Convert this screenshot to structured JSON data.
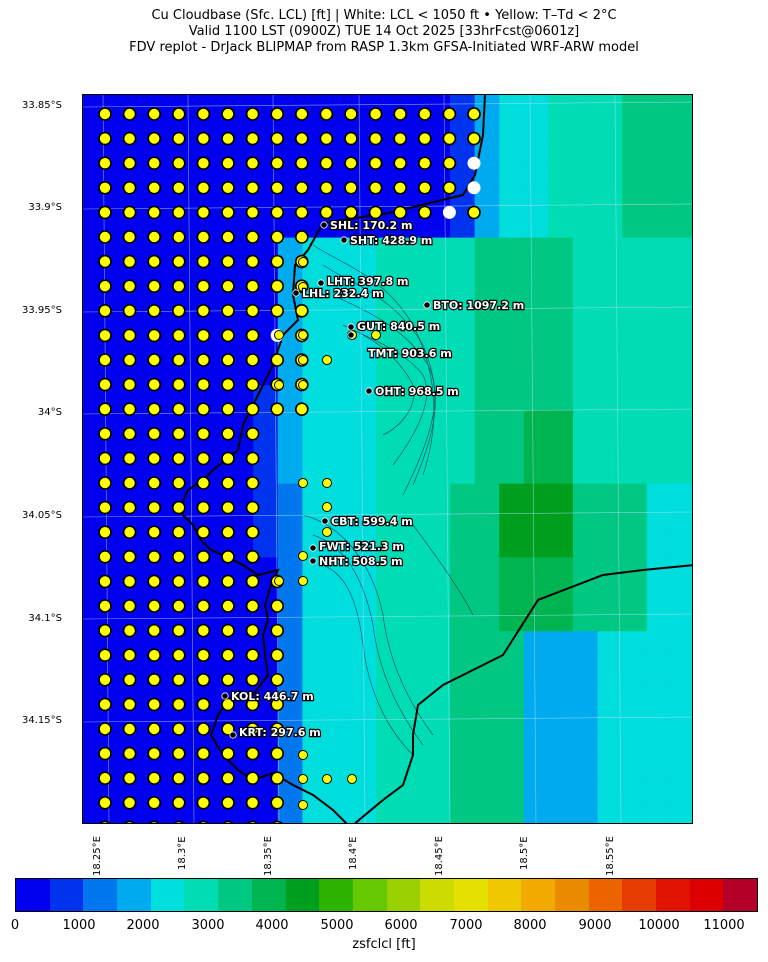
{
  "title": {
    "line1": "Cu Cloudbase (Sfc. LCL) [ft]  |  White: LCL < 1050 ft • Yellow: T–Td < 2°C",
    "line2": "Valid 1100 LST (0900Z) TUE 14 Oct 2025 [33hrFcst@0601z]",
    "line3": "FDV replot - DrJack BLIPMAP from RASP 1.3km GFSA-Initiated WRF-ARW model"
  },
  "axes": {
    "lat_ticks": [
      "33.85°S",
      "33.9°S",
      "33.95°S",
      "34°S",
      "34.05°S",
      "34.1°S",
      "34.15°S"
    ],
    "lon_ticks": [
      "18.25°E",
      "18.3°E",
      "18.35°E",
      "18.4°E",
      "18.45°E",
      "18.5°E",
      "18.55°E"
    ]
  },
  "colorbar": {
    "label": "zsfclcl [ft]",
    "ticks": [
      "0",
      "1000",
      "2000",
      "3000",
      "4000",
      "5000",
      "6000",
      "7000",
      "8000",
      "9000",
      "10000",
      "11000"
    ],
    "colors": [
      "#0000ee",
      "#0033ee",
      "#0077ee",
      "#00aaee",
      "#00dddd",
      "#00dcb4",
      "#00c882",
      "#00b450",
      "#00a01e",
      "#2db400",
      "#66c800",
      "#99d200",
      "#ccdc00",
      "#e6e000",
      "#f0c800",
      "#f0aa00",
      "#eb8c00",
      "#eb6400",
      "#e63c00",
      "#e01400",
      "#dc0000",
      "#b40028"
    ]
  },
  "sites": [
    {
      "label": "SHL: 170.2 m"
    },
    {
      "label": "SHT: 428.9 m"
    },
    {
      "label": "LHT: 397.8 m"
    },
    {
      "label": "LHL: 232.4 m"
    },
    {
      "label": "BTO: 1097.2 m"
    },
    {
      "label": "GUT: 840.5 m"
    },
    {
      "label": "TMT: 903.6 m"
    },
    {
      "label": "OHT: 968.5 m"
    },
    {
      "label": "CBT: 599.4 m"
    },
    {
      "label": "FWT: 521.3 m"
    },
    {
      "label": "NHT: 508.5 m"
    },
    {
      "label": "KOL: 446.7 m"
    },
    {
      "label": "KRT: 297.6 m"
    }
  ]
}
